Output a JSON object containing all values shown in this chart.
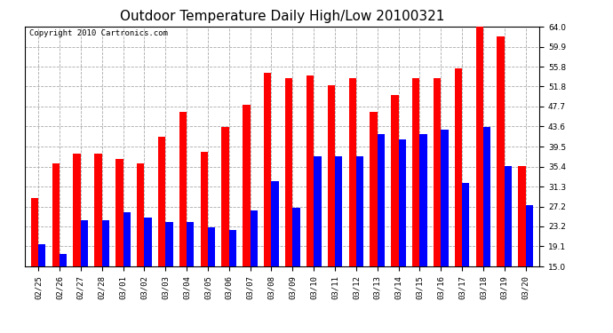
{
  "title": "Outdoor Temperature Daily High/Low 20100321",
  "copyright": "Copyright 2010 Cartronics.com",
  "dates": [
    "02/25",
    "02/26",
    "02/27",
    "02/28",
    "03/01",
    "03/02",
    "03/03",
    "03/04",
    "03/05",
    "03/06",
    "03/07",
    "03/08",
    "03/09",
    "03/10",
    "03/11",
    "03/12",
    "03/13",
    "03/14",
    "03/15",
    "03/16",
    "03/17",
    "03/18",
    "03/19",
    "03/20"
  ],
  "highs": [
    29.0,
    36.0,
    38.0,
    38.0,
    37.0,
    36.0,
    41.5,
    46.5,
    38.5,
    43.5,
    48.0,
    54.5,
    53.5,
    54.0,
    52.0,
    53.5,
    46.5,
    50.0,
    53.5,
    53.5,
    55.5,
    64.0,
    62.0,
    35.5
  ],
  "lows": [
    19.5,
    17.5,
    24.5,
    24.5,
    26.0,
    25.0,
    24.0,
    24.0,
    23.0,
    22.5,
    26.5,
    32.5,
    27.0,
    37.5,
    37.5,
    37.5,
    42.0,
    41.0,
    42.0,
    43.0,
    32.0,
    43.5,
    35.5,
    27.5
  ],
  "high_color": "#ff0000",
  "low_color": "#0000ff",
  "bg_color": "#ffffff",
  "grid_color": "#aaaaaa",
  "ylim_min": 15.0,
  "ylim_max": 64.0,
  "yticks": [
    15.0,
    19.1,
    23.2,
    27.2,
    31.3,
    35.4,
    39.5,
    43.6,
    47.7,
    51.8,
    55.8,
    59.9,
    64.0
  ],
  "bar_width": 0.35,
  "title_fontsize": 11,
  "tick_fontsize": 6.5,
  "copyright_fontsize": 6.5
}
